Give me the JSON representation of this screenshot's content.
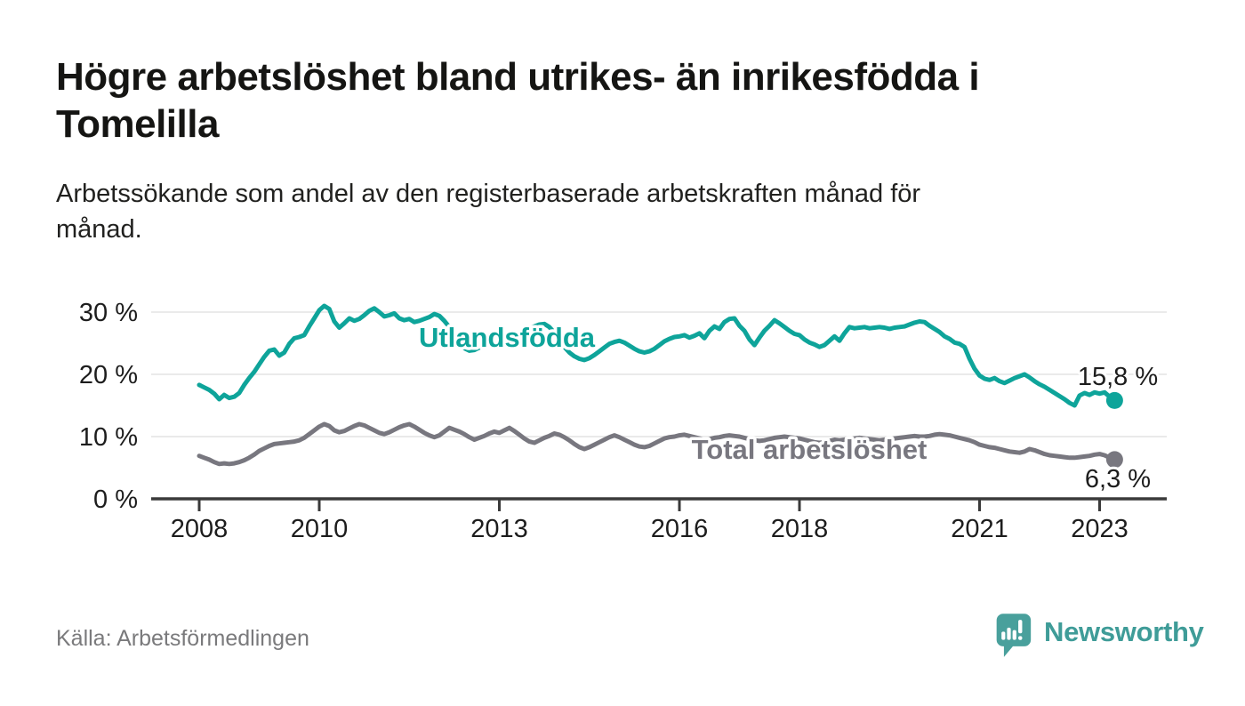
{
  "page": {
    "title": "Högre arbetslöshet bland utrikes- än inrikesfödda i\nTomelilla",
    "subtitle": "Arbetssökande som andel av den registerbaserade arbetskraften månad för\nmånad.",
    "source": "Källa: Arbetsförmedlingen",
    "brand": "Newsworthy"
  },
  "colors": {
    "teal_line": "#0ea49a",
    "gray_line": "#78777f",
    "grid": "#e3e3e3",
    "axis": "#3a3a3a",
    "logo_teal": "#49a09c",
    "text_dark": "#1d1d1d",
    "text_muted": "#7a7a7c"
  },
  "chart_data": {
    "type": "line",
    "x_unit": "month",
    "x_start_year": 2008,
    "x_start_month": 1,
    "x_end_year": 2023,
    "x_end_month": 4,
    "ylim": [
      0,
      33
    ],
    "grid": true,
    "x_ticks": [
      2008,
      2010,
      2013,
      2016,
      2018,
      2021,
      2023
    ],
    "x_tick_labels": [
      "2008",
      "2010",
      "2013",
      "2016",
      "2018",
      "2021",
      "2023"
    ],
    "y_ticks": [
      {
        "value": 0,
        "label": "0 %"
      },
      {
        "value": 10,
        "label": "10 %"
      },
      {
        "value": 20,
        "label": "20 %"
      },
      {
        "value": 30,
        "label": "30 %"
      }
    ],
    "series": [
      {
        "name": "Utlandsfödda",
        "color": "#0ea49a",
        "end_label": "15,8 %",
        "end_value": 15.8,
        "values": [
          18.3,
          17.9,
          17.5,
          16.9,
          16.0,
          16.7,
          16.2,
          16.4,
          17.0,
          18.3,
          19.4,
          20.4,
          21.6,
          22.8,
          23.8,
          24.0,
          23.0,
          23.5,
          24.9,
          25.8,
          26.0,
          26.3,
          27.7,
          29.0,
          30.3,
          31.0,
          30.5,
          28.5,
          27.5,
          28.2,
          29.0,
          28.6,
          28.9,
          29.5,
          30.2,
          30.6,
          30.0,
          29.3,
          29.5,
          29.8,
          29.0,
          28.7,
          28.9,
          28.4,
          28.6,
          28.9,
          29.2,
          29.7,
          29.4,
          28.6,
          27.6,
          26.3,
          25.0,
          24.2,
          23.8,
          23.9,
          24.3,
          25.0,
          25.7,
          26.2,
          26.0,
          25.7,
          25.9,
          26.2,
          26.5,
          26.9,
          27.3,
          27.7,
          28.0,
          28.1,
          27.6,
          26.7,
          25.4,
          24.4,
          23.5,
          22.9,
          22.5,
          22.3,
          22.6,
          23.1,
          23.7,
          24.3,
          24.9,
          25.2,
          25.4,
          25.1,
          24.6,
          24.1,
          23.7,
          23.5,
          23.7,
          24.1,
          24.7,
          25.3,
          25.7,
          26.0,
          26.1,
          26.3,
          25.9,
          26.2,
          26.6,
          25.8,
          27.0,
          27.7,
          27.3,
          28.4,
          28.9,
          29.0,
          27.8,
          27.0,
          25.6,
          24.7,
          25.9,
          27.0,
          27.8,
          28.7,
          28.2,
          27.6,
          27.0,
          26.5,
          26.3,
          25.6,
          25.1,
          24.8,
          24.4,
          24.7,
          25.4,
          26.1,
          25.4,
          26.6,
          27.6,
          27.4,
          27.5,
          27.6,
          27.4,
          27.5,
          27.6,
          27.5,
          27.3,
          27.5,
          27.6,
          27.7,
          28.0,
          28.3,
          28.5,
          28.4,
          27.8,
          27.3,
          26.8,
          26.1,
          25.7,
          25.1,
          24.9,
          24.4,
          22.5,
          20.9,
          19.8,
          19.3,
          19.1,
          19.4,
          18.9,
          18.6,
          19.0,
          19.4,
          19.7,
          20.0,
          19.5,
          18.9,
          18.4,
          18.0,
          17.5,
          17.0,
          16.5,
          16.0,
          15.4,
          15.0,
          16.6,
          17.0,
          16.7,
          17.1,
          16.9,
          17.1,
          16.4,
          15.8
        ]
      },
      {
        "name": "Total arbetslöshet",
        "color": "#78777f",
        "end_label": "6,3 %",
        "end_value": 6.3,
        "values": [
          6.9,
          6.6,
          6.3,
          5.9,
          5.6,
          5.7,
          5.6,
          5.7,
          5.9,
          6.2,
          6.6,
          7.1,
          7.7,
          8.1,
          8.5,
          8.8,
          8.9,
          9.0,
          9.1,
          9.2,
          9.4,
          9.8,
          10.4,
          11.0,
          11.6,
          12.0,
          11.7,
          11.0,
          10.7,
          10.9,
          11.3,
          11.7,
          12.0,
          11.8,
          11.4,
          11.0,
          10.6,
          10.4,
          10.7,
          11.1,
          11.5,
          11.8,
          12.0,
          11.6,
          11.1,
          10.6,
          10.2,
          9.9,
          10.2,
          10.8,
          11.4,
          11.1,
          10.8,
          10.4,
          9.9,
          9.5,
          9.8,
          10.1,
          10.5,
          10.8,
          10.6,
          11.0,
          11.4,
          10.9,
          10.3,
          9.7,
          9.2,
          9.0,
          9.4,
          9.8,
          10.1,
          10.5,
          10.3,
          9.9,
          9.4,
          8.8,
          8.3,
          8.0,
          8.3,
          8.7,
          9.1,
          9.5,
          9.9,
          10.2,
          9.9,
          9.5,
          9.1,
          8.7,
          8.4,
          8.3,
          8.5,
          8.9,
          9.3,
          9.7,
          9.9,
          10.0,
          10.2,
          10.3,
          10.1,
          9.9,
          9.7,
          9.5,
          9.6,
          9.8,
          9.9,
          10.1,
          10.2,
          10.1,
          10.0,
          9.8,
          9.6,
          9.4,
          9.3,
          9.4,
          9.6,
          9.8,
          9.9,
          10.0,
          9.9,
          9.8,
          9.7,
          9.5,
          9.3,
          9.1,
          9.0,
          9.1,
          9.3,
          9.5,
          9.4,
          9.5,
          9.6,
          9.7,
          9.8,
          9.7,
          9.6,
          9.5,
          9.4,
          9.5,
          9.6,
          9.7,
          9.8,
          9.9,
          10.0,
          10.1,
          10.0,
          10.0,
          10.1,
          10.3,
          10.4,
          10.3,
          10.2,
          10.0,
          9.8,
          9.6,
          9.4,
          9.1,
          8.7,
          8.5,
          8.3,
          8.2,
          8.0,
          7.8,
          7.6,
          7.5,
          7.4,
          7.6,
          8.0,
          7.8,
          7.5,
          7.2,
          7.0,
          6.9,
          6.8,
          6.7,
          6.6,
          6.6,
          6.7,
          6.8,
          6.9,
          7.1,
          7.2,
          7.0,
          6.6,
          6.3
        ]
      }
    ]
  }
}
